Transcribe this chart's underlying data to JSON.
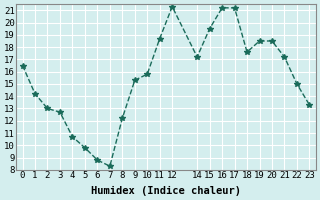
{
  "x": [
    0,
    1,
    2,
    3,
    4,
    5,
    6,
    7,
    8,
    9,
    10,
    11,
    12,
    14,
    15,
    16,
    17,
    18,
    19,
    20,
    21,
    22,
    23
  ],
  "y": [
    16.5,
    14.2,
    13.0,
    12.7,
    10.7,
    9.8,
    8.8,
    8.3,
    12.2,
    15.3,
    15.8,
    18.7,
    21.3,
    17.2,
    19.5,
    21.2,
    21.2,
    17.6,
    18.5,
    18.5,
    17.2,
    15.0,
    13.3
  ],
  "xlabel": "Humidex (Indice chaleur)",
  "ylabel": "",
  "xlim": [
    -0.5,
    23.5
  ],
  "ylim": [
    8,
    21.5
  ],
  "yticks": [
    8,
    9,
    10,
    11,
    12,
    13,
    14,
    15,
    16,
    17,
    18,
    19,
    20,
    21
  ],
  "xticks": [
    0,
    1,
    2,
    3,
    4,
    5,
    6,
    7,
    8,
    9,
    10,
    11,
    12,
    14,
    15,
    16,
    17,
    18,
    19,
    20,
    21,
    22,
    23
  ],
  "line_color": "#1a6b5a",
  "marker": "*",
  "bg_color": "#d4eeee",
  "grid_color": "#ffffff",
  "title_fontsize": 7.5,
  "label_fontsize": 7.5,
  "tick_fontsize": 6.5
}
